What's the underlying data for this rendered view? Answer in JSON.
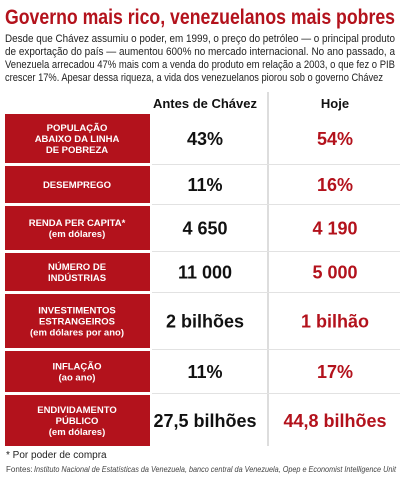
{
  "header": {
    "title": "Governo mais rico, venezuelanos mais pobres",
    "intro_lines": [
      "Desde que Chávez assumiu o poder, em 1999, o preço do petróleo — o principal produto",
      "de exportação do país — aumentou 600% no mercado internacional. No ano passado, a",
      "Venezuela arrecadou 47% mais com a venda do produto em relação a 2003, o que fez o PIB",
      "crescer 17%. Apesar dessa riqueza, a vida dos venezuelanos piorou sob o governo Chávez"
    ]
  },
  "table": {
    "columns": [
      "Antes de Chávez",
      "Hoje"
    ],
    "rows": [
      {
        "label_lines": [
          "POPULAÇÃO",
          "ABAIXO DA LINHA",
          "DE POBREZA"
        ],
        "before": "43%",
        "now": "54%"
      },
      {
        "label_lines": [
          "DESEMPREGO"
        ],
        "before": "11%",
        "now": "16%"
      },
      {
        "label_lines": [
          "RENDA PER CAPITA*",
          "(em dólares)"
        ],
        "before": "4 650",
        "now": "4 190"
      },
      {
        "label_lines": [
          "NÚMERO DE",
          "INDÚSTRIAS"
        ],
        "before": "11 000",
        "now": "5 000"
      },
      {
        "label_lines": [
          "INVESTIMENTOS",
          "ESTRANGEIROS",
          "(em dólares por ano)"
        ],
        "before": "2 bilhões",
        "now": "1 bilhão"
      },
      {
        "label_lines": [
          "INFLAÇÃO",
          "(ao ano)"
        ],
        "before": "11%",
        "now": "17%"
      },
      {
        "label_lines": [
          "ENDIVIDAMENTO",
          "PÚBLICO",
          "(em dólares)"
        ],
        "before": "27,5 bilhões",
        "now": "44,8 bilhões"
      }
    ]
  },
  "footnote": "* Por poder de compra",
  "sources": {
    "label": "Fontes:",
    "text": "Instituto Nacional de Estatísticas da Venezuela, banco central da Venezuela, Opep e Economist Intelligence Unit"
  }
}
